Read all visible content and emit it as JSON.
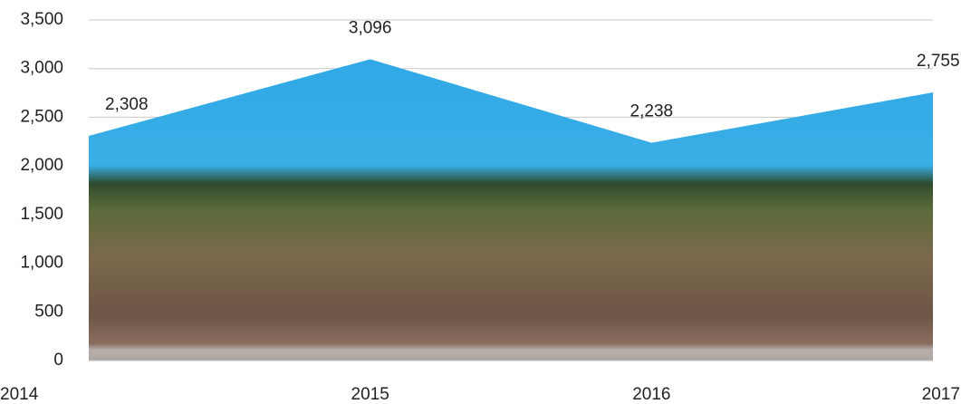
{
  "chart_data": {
    "type": "area",
    "x": [
      2014,
      2015,
      2016,
      2017
    ],
    "values": [
      2308,
      3096,
      2238,
      2755
    ],
    "value_labels": [
      "2,308",
      "3,096",
      "2,238",
      "2,755"
    ],
    "xlim": [
      2014,
      2017
    ],
    "xticks": [
      2014,
      2015,
      2016,
      2017
    ],
    "ylim": [
      0,
      3500
    ],
    "yticks": [
      0,
      500,
      {
        "value": 1000,
        "label": "1,000"
      },
      {
        "value": 1500,
        "label": "1,500"
      },
      {
        "value": 2000,
        "label": "2,000"
      },
      {
        "value": 2500,
        "label": "2,500"
      },
      {
        "value": 3000,
        "label": "3,000"
      },
      {
        "value": 3500,
        "label": "3,500"
      }
    ],
    "grid": true
  }
}
